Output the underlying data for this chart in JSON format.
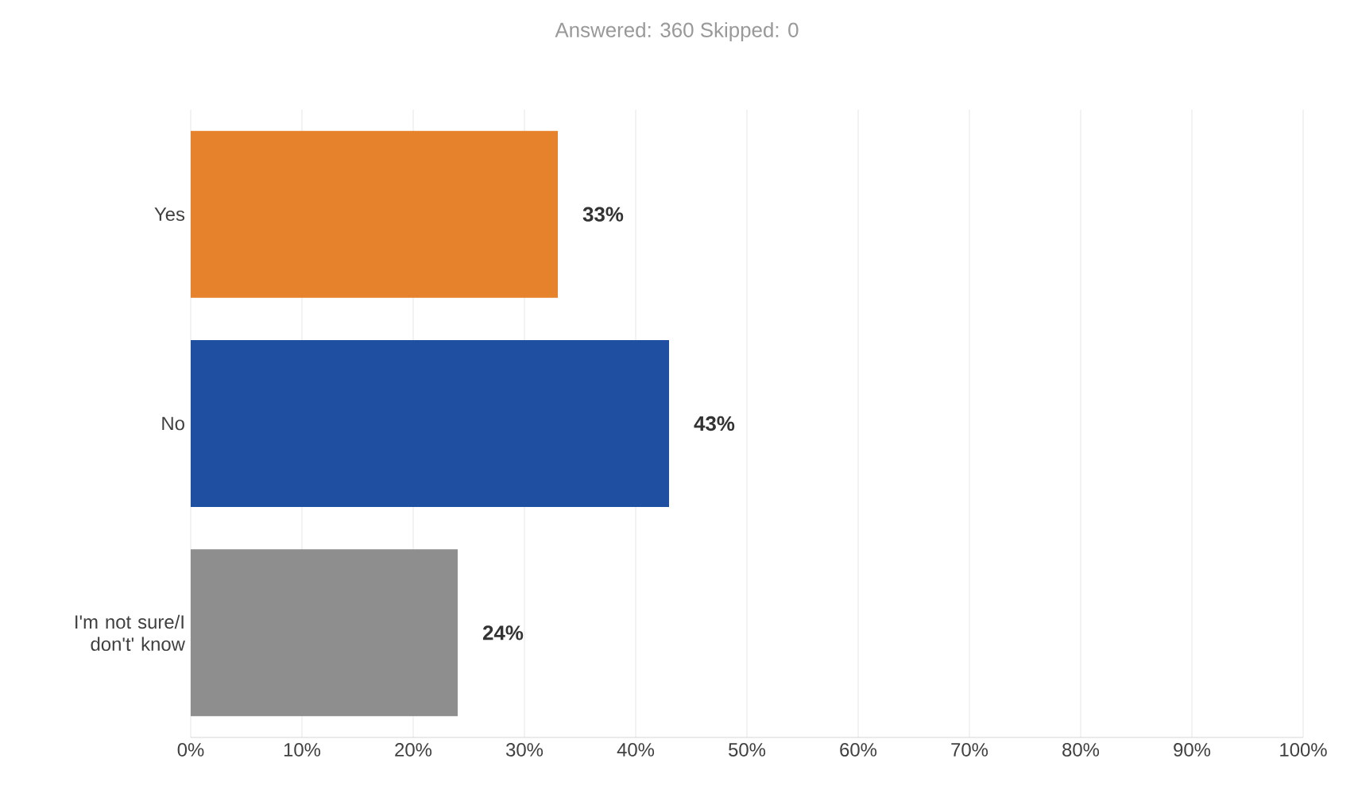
{
  "chart_data": {
    "type": "bar",
    "orientation": "horizontal",
    "title": "Answered: 360    Skipped: 0",
    "categories": [
      "Yes",
      "No",
      "I'm not sure/I don't' know"
    ],
    "values": [
      33,
      43,
      24
    ],
    "colors": [
      "#e5822b",
      "#1f4fa0",
      "#8e8e8e"
    ],
    "value_labels": [
      "33%",
      "43%",
      "24%"
    ],
    "xlim": [
      0,
      100
    ],
    "xticks": [
      {
        "value": 0,
        "label": "0%"
      },
      {
        "value": 10,
        "label": "10%"
      },
      {
        "value": 20,
        "label": "20%"
      },
      {
        "value": 30,
        "label": "30%"
      },
      {
        "value": 40,
        "label": "40%"
      },
      {
        "value": 50,
        "label": "50%"
      },
      {
        "value": 60,
        "label": "60%"
      },
      {
        "value": 70,
        "label": "70%"
      },
      {
        "value": 80,
        "label": "80%"
      },
      {
        "value": 90,
        "label": "90%"
      },
      {
        "value": 100,
        "label": "100%"
      }
    ],
    "grid": "x"
  }
}
